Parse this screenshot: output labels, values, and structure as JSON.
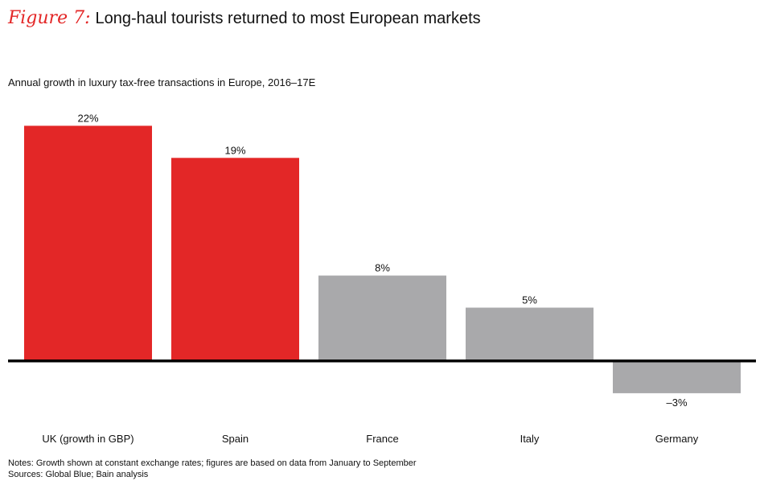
{
  "header": {
    "figure_label": "Figure 7:",
    "title": "Long-haul tourists returned to most European markets"
  },
  "chart_data": {
    "type": "bar",
    "title": "Long-haul tourists returned to most European markets",
    "subtitle": "Annual growth in luxury tax-free transactions in Europe, 2016–17E",
    "categories": [
      "UK (growth in GBP)",
      "Spain",
      "France",
      "Italy",
      "Germany"
    ],
    "values": [
      22,
      19,
      8,
      5,
      -3
    ],
    "data_labels": [
      "22%",
      "19%",
      "8%",
      "5%",
      "–3%"
    ],
    "colors": [
      "#e32727",
      "#e32727",
      "#a9a9ab",
      "#a9a9ab",
      "#a9a9ab"
    ],
    "unit": "%",
    "xlabel": "",
    "ylabel": "",
    "grid": false,
    "legend": "none"
  },
  "footer": {
    "notes": "Notes: Growth shown at constant exchange rates; figures are based on data from January to September",
    "sources": "Sources: Global Blue; Bain analysis"
  }
}
